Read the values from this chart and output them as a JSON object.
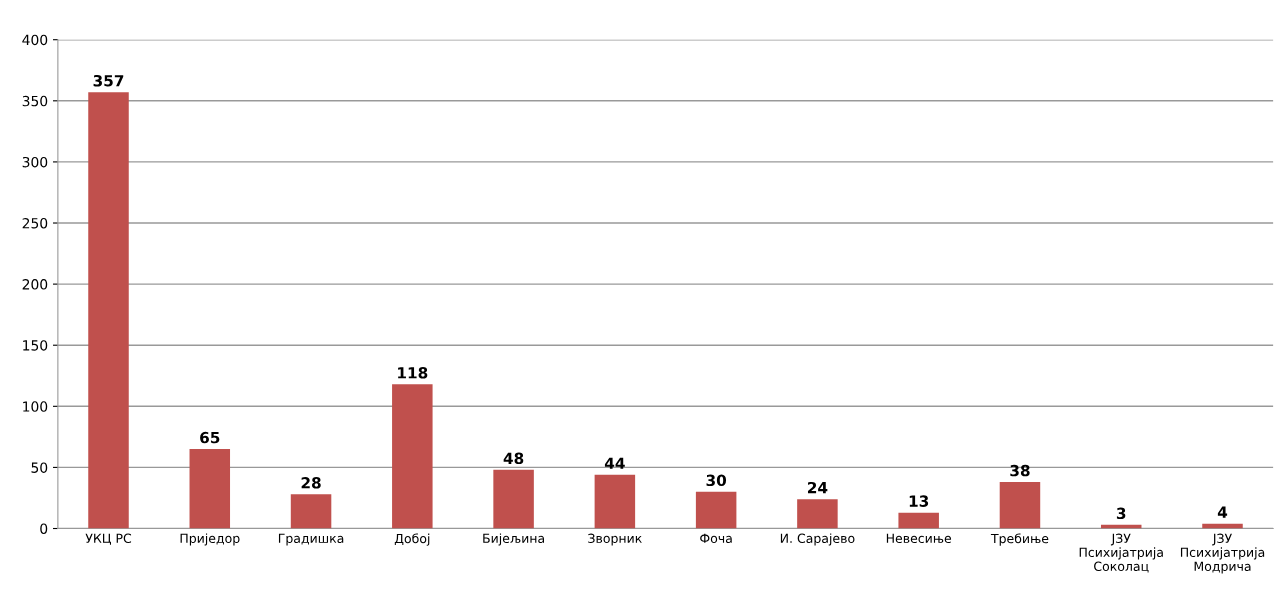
{
  "chart_data": {
    "type": "bar",
    "categories": [
      "УКЦ РС",
      "Приједор",
      "Градишка",
      "Добој",
      "Бијељина",
      "Зворник",
      "Фоча",
      "И. Сарајево",
      "Невесиње",
      "Требиње",
      "ЈЗУ\nПсихијатрија\nСоколац",
      "ЈЗУ\nПсихијатрија\nМодрича"
    ],
    "values": [
      357,
      65,
      28,
      118,
      48,
      44,
      30,
      24,
      13,
      38,
      3,
      4
    ],
    "color": "#c0504d",
    "ylim": [
      0,
      400
    ],
    "yticks": [
      0,
      50,
      100,
      150,
      200,
      250,
      300,
      350,
      400
    ],
    "grid": "y",
    "data_labels": true
  }
}
